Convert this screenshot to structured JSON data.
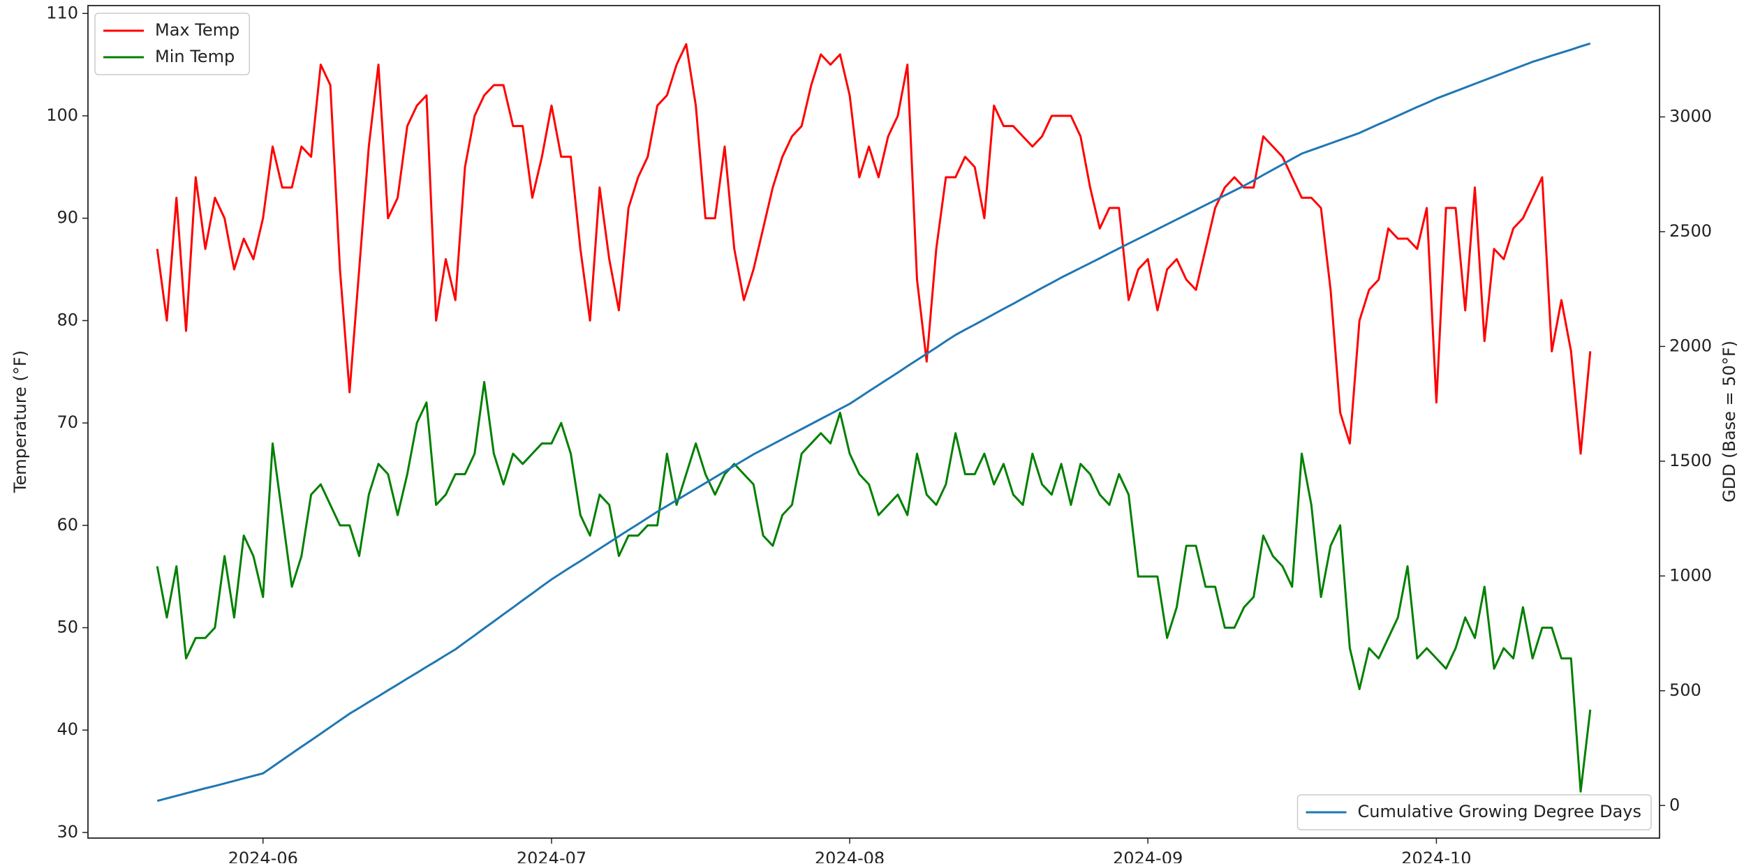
{
  "chart_data": {
    "type": "line",
    "y_label": "Temperature (°F)",
    "y2_label": "GDD (Base = 50°F)",
    "x": [
      0,
      1,
      2,
      3,
      4,
      5,
      6,
      7,
      8,
      9,
      10,
      11,
      12,
      13,
      14,
      15,
      16,
      17,
      18,
      19,
      20,
      21,
      22,
      23,
      24,
      25,
      26,
      27,
      28,
      29,
      30,
      31,
      32,
      33,
      34,
      35,
      36,
      37,
      38,
      39,
      40,
      41,
      42,
      43,
      44,
      45,
      46,
      47,
      48,
      49,
      50,
      51,
      52,
      53,
      54,
      55,
      56,
      57,
      58,
      59,
      60,
      61,
      62,
      63,
      64,
      65,
      66,
      67,
      68,
      69,
      70,
      71,
      72,
      73,
      74,
      75,
      76,
      77,
      78,
      79,
      80,
      81,
      82,
      83,
      84,
      85,
      86,
      87,
      88,
      89,
      90,
      91,
      92,
      93,
      94,
      95,
      96,
      97,
      98,
      99,
      100,
      101,
      102,
      103,
      104,
      105,
      106,
      107,
      108,
      109,
      110,
      111,
      112,
      113,
      114,
      115,
      116,
      117,
      118,
      119,
      120,
      121,
      122,
      123,
      124,
      125,
      126,
      127,
      128,
      129,
      130,
      131,
      132,
      133,
      134,
      135,
      136,
      137,
      138,
      139,
      140,
      141,
      142,
      143,
      144,
      145,
      146,
      147,
      148,
      149
    ],
    "xlim": [
      -7.2,
      156.2
    ],
    "xticks": [
      {
        "value": 11,
        "label": "2024-06"
      },
      {
        "value": 41,
        "label": "2024-07"
      },
      {
        "value": 72,
        "label": "2024-08"
      },
      {
        "value": 103,
        "label": "2024-09"
      },
      {
        "value": 133,
        "label": "2024-10"
      }
    ],
    "ylim": [
      29.45,
      110.77
    ],
    "yticks": [
      30,
      40,
      50,
      60,
      70,
      80,
      90,
      100,
      110
    ],
    "y2lim": [
      -142,
      3485
    ],
    "y2ticks": [
      0,
      500,
      1000,
      1500,
      2000,
      2500,
      3000
    ],
    "grid": false,
    "legend": "upper left",
    "legend2": "lower right",
    "series": [
      {
        "name": "Max Temp",
        "color": "#ff0000",
        "axis": "y",
        "values": [
          87,
          80,
          92,
          79,
          94,
          87,
          92,
          90,
          85,
          88,
          86,
          90,
          97,
          93,
          93,
          97,
          96,
          105,
          103,
          85,
          73,
          85,
          97,
          105,
          90,
          92,
          99,
          101,
          102,
          80,
          86,
          82,
          95,
          100,
          102,
          103,
          103,
          99,
          99,
          92,
          96,
          101,
          96,
          96,
          87,
          80,
          93,
          86,
          81,
          91,
          94,
          96,
          101,
          102,
          105,
          107,
          101,
          90,
          90,
          97,
          87,
          82,
          85,
          89,
          93,
          96,
          98,
          99,
          103,
          106,
          105,
          106,
          102,
          94,
          97,
          94,
          98,
          100,
          105,
          84,
          76,
          87,
          94,
          94,
          96,
          95,
          90,
          101,
          99,
          99,
          98,
          97,
          98,
          100,
          100,
          100,
          98,
          93,
          89,
          91,
          91,
          82,
          85,
          86,
          81,
          85,
          86,
          84,
          83,
          87,
          91,
          93,
          94,
          93,
          93,
          98,
          97,
          96,
          94,
          92,
          92,
          91,
          83,
          71,
          68,
          80,
          83,
          84,
          89,
          88,
          88,
          87,
          91,
          72,
          91,
          91,
          81,
          93,
          78,
          87,
          86,
          89,
          90,
          92,
          94,
          77,
          82,
          77,
          67,
          77
        ]
      },
      {
        "name": "Min Temp",
        "color": "#008000",
        "axis": "y",
        "values": [
          56,
          51,
          56,
          47,
          49,
          49,
          50,
          57,
          51,
          59,
          57,
          53,
          68,
          61,
          54,
          57,
          63,
          64,
          62,
          60,
          60,
          57,
          63,
          66,
          65,
          61,
          65,
          70,
          72,
          62,
          63,
          65,
          65,
          67,
          74,
          67,
          64,
          67,
          66,
          67,
          68,
          68,
          70,
          67,
          61,
          59,
          63,
          62,
          57,
          59,
          59,
          60,
          60,
          67,
          62,
          65,
          68,
          65,
          63,
          65,
          66,
          65,
          64,
          59,
          58,
          61,
          62,
          67,
          68,
          69,
          68,
          71,
          67,
          65,
          64,
          61,
          62,
          63,
          61,
          67,
          63,
          62,
          64,
          69,
          65,
          65,
          67,
          64,
          66,
          63,
          62,
          67,
          64,
          63,
          66,
          62,
          66,
          65,
          63,
          62,
          65,
          63,
          55,
          55,
          55,
          49,
          52,
          58,
          58,
          54,
          54,
          50,
          50,
          52,
          53,
          59,
          57,
          56,
          54,
          67,
          62,
          53,
          58,
          60,
          48,
          44,
          48,
          47,
          49,
          51,
          56,
          47,
          48,
          47,
          46,
          48,
          51,
          49,
          54,
          46,
          48,
          47,
          52,
          47,
          50,
          50,
          47,
          47,
          34,
          42
        ]
      },
      {
        "name": "Cumulative Growing Degree Days",
        "color": "#1f77b4",
        "axis": "y2",
        "values": [
          20,
          31,
          42,
          53,
          64,
          75,
          85,
          96,
          107,
          118,
          129,
          140,
          169,
          198,
          227,
          256,
          284,
          313,
          342,
          371,
          400,
          425,
          451,
          476,
          502,
          527,
          553,
          578,
          604,
          629,
          655,
          680,
          711,
          741,
          772,
          802,
          833,
          863,
          894,
          924,
          955,
          985,
          1012,
          1039,
          1065,
          1092,
          1119,
          1146,
          1173,
          1200,
          1226,
          1253,
          1280,
          1305,
          1330,
          1355,
          1380,
          1405,
          1430,
          1455,
          1480,
          1505,
          1530,
          1552,
          1574,
          1596,
          1618,
          1640,
          1662,
          1684,
          1706,
          1728,
          1750,
          1777,
          1805,
          1832,
          1859,
          1886,
          1914,
          1941,
          1968,
          1995,
          2023,
          2050,
          2073,
          2095,
          2118,
          2141,
          2164,
          2186,
          2209,
          2232,
          2255,
          2277,
          2300,
          2321,
          2342,
          2363,
          2384,
          2406,
          2427,
          2448,
          2469,
          2490,
          2511,
          2532,
          2553,
          2574,
          2595,
          2616,
          2637,
          2658,
          2679,
          2700,
          2723,
          2747,
          2770,
          2793,
          2817,
          2840,
          2855,
          2870,
          2885,
          2900,
          2915,
          2930,
          2949,
          2968,
          2986,
          3005,
          3024,
          3043,
          3061,
          3080,
          3096,
          3112,
          3128,
          3144,
          3160,
          3176,
          3192,
          3208,
          3224,
          3240,
          3253,
          3267,
          3280,
          3293,
          3307,
          3320
        ]
      }
    ]
  }
}
